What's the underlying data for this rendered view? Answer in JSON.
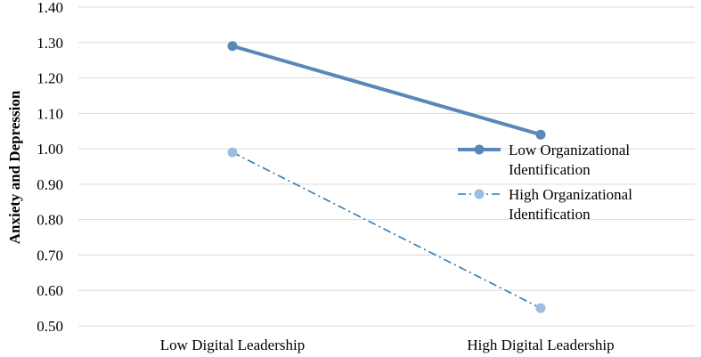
{
  "chart_data": {
    "type": "line",
    "categories": [
      "Low Digital Leadership",
      "High Digital Leadership"
    ],
    "series": [
      {
        "name": "Low  Organizational Identification",
        "legend_lines": [
          "Low  Organizational",
          "Identification"
        ],
        "values": [
          1.29,
          1.04
        ],
        "color": "#5b87b8",
        "style": "solid"
      },
      {
        "name": "High Organizational Identification",
        "legend_lines": [
          "High Organizational",
          "Identification"
        ],
        "values": [
          0.99,
          0.55
        ],
        "color": "#2f7bb0",
        "marker_color": "#9dbde0",
        "style": "dash-dot"
      }
    ],
    "ylabel": "Anxiety and Depression",
    "ylim": [
      0.5,
      1.4
    ],
    "yticks": [
      "0.50",
      "0.60",
      "0.70",
      "0.80",
      "0.90",
      "1.00",
      "1.10",
      "1.20",
      "1.30",
      "1.40"
    ],
    "grid": true,
    "legend_position": "right"
  }
}
